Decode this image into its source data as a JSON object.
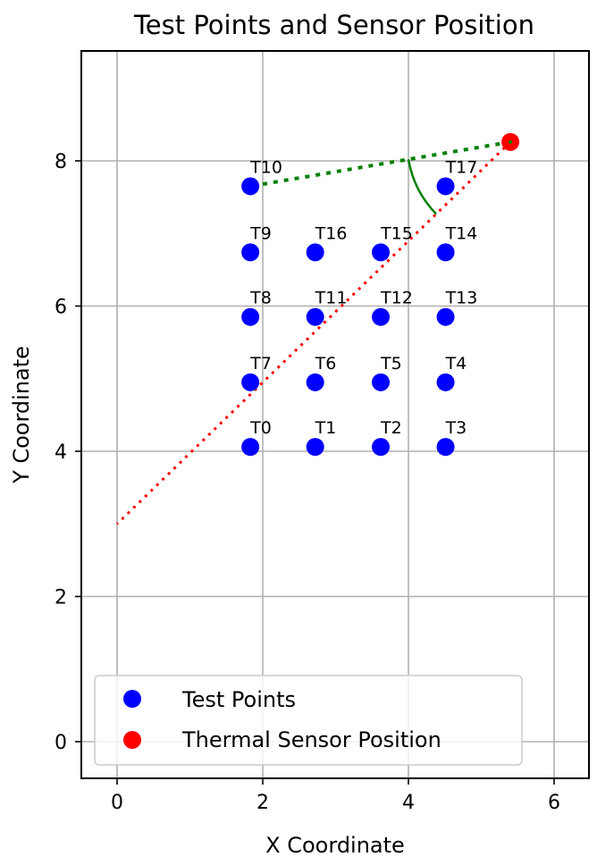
{
  "chart_data": {
    "type": "scatter",
    "title": "Test Points and Sensor Position",
    "xlabel": "X Coordinate",
    "ylabel": "Y Coordinate",
    "xlim": [
      -0.5,
      6.5
    ],
    "ylim": [
      -0.5,
      9.4
    ],
    "xticks": [
      "0",
      "2",
      "4",
      "6"
    ],
    "yticks": [
      "0",
      "2",
      "4",
      "6",
      "8"
    ],
    "grid": true,
    "legend_position": "lower left",
    "series": [
      {
        "name": "Test Points",
        "color": "#0000ff",
        "points": [
          {
            "label": "T0",
            "x": 1.83,
            "y": 4.06
          },
          {
            "label": "T1",
            "x": 2.72,
            "y": 4.06
          },
          {
            "label": "T2",
            "x": 3.62,
            "y": 4.06
          },
          {
            "label": "T3",
            "x": 4.51,
            "y": 4.06
          },
          {
            "label": "T4",
            "x": 4.51,
            "y": 4.95
          },
          {
            "label": "T5",
            "x": 3.62,
            "y": 4.95
          },
          {
            "label": "T6",
            "x": 2.72,
            "y": 4.95
          },
          {
            "label": "T7",
            "x": 1.83,
            "y": 4.95
          },
          {
            "label": "T8",
            "x": 1.83,
            "y": 5.85
          },
          {
            "label": "T9",
            "x": 1.83,
            "y": 6.74
          },
          {
            "label": "T10",
            "x": 1.83,
            "y": 7.65
          },
          {
            "label": "T11",
            "x": 2.72,
            "y": 5.85
          },
          {
            "label": "T12",
            "x": 3.62,
            "y": 5.85
          },
          {
            "label": "T13",
            "x": 4.51,
            "y": 5.85
          },
          {
            "label": "T14",
            "x": 4.51,
            "y": 6.74
          },
          {
            "label": "T15",
            "x": 3.62,
            "y": 6.74
          },
          {
            "label": "T16",
            "x": 2.72,
            "y": 6.74
          },
          {
            "label": "T17",
            "x": 4.51,
            "y": 7.65
          }
        ]
      },
      {
        "name": "Thermal Sensor Position",
        "color": "#ff0000",
        "points": [
          {
            "x": 5.4,
            "y": 8.26
          }
        ]
      }
    ],
    "annotations": [
      {
        "type": "dotted-line",
        "color": "#ff0000",
        "from": [
          5.4,
          8.26
        ],
        "to": [
          0.0,
          3.0
        ]
      },
      {
        "type": "dotted-line",
        "color": "#008000",
        "from": [
          5.4,
          8.26
        ],
        "to": [
          1.83,
          7.65
        ]
      },
      {
        "type": "arc",
        "color": "#008000",
        "center": [
          5.4,
          8.26
        ],
        "radius": 1.42,
        "description": "angle arc between the two lines"
      }
    ]
  },
  "legend": {
    "items": [
      {
        "label": "Test Points",
        "color": "#0000ff"
      },
      {
        "label": "Thermal Sensor Position",
        "color": "#ff0000"
      }
    ]
  }
}
